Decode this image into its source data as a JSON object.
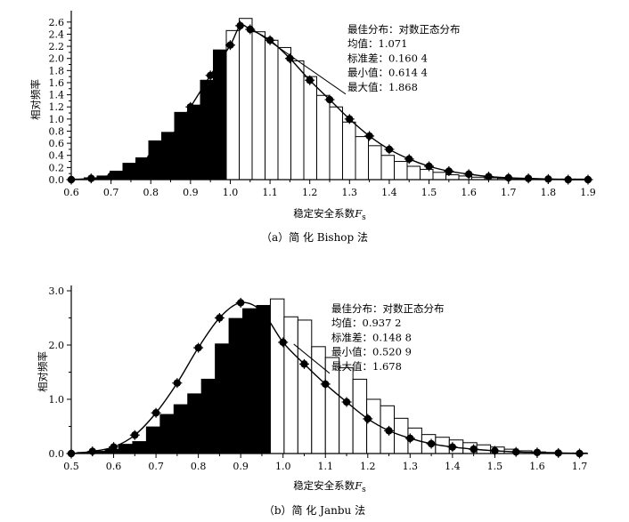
{
  "chart_data": [
    {
      "type": "bar",
      "panel": "a",
      "caption": "（a）简 化 Bishop 法",
      "xlabel_main": "稳定安全系数",
      "xlabel_var": "F",
      "xlabel_sub": "s",
      "ylabel": "相对频率",
      "xlim": [
        0.6,
        1.9
      ],
      "ylim": [
        0,
        2.7
      ],
      "xticks": [
        0.6,
        0.7,
        0.8,
        0.9,
        1.0,
        1.1,
        1.2,
        1.3,
        1.4,
        1.5,
        1.6,
        1.7,
        1.8,
        1.9
      ],
      "xtick_labels": [
        "0.6",
        "0.7",
        "0.8",
        "0.9",
        "1.0",
        "1.1",
        "1.2",
        "1.3",
        "1.4",
        "1.5",
        "1.6",
        "1.7",
        "1.8",
        "1.9"
      ],
      "yticks": [
        0.0,
        0.2,
        0.4,
        0.6,
        0.8,
        1.0,
        1.2,
        1.4,
        1.6,
        1.8,
        2.0,
        2.2,
        2.4,
        2.6
      ],
      "ytick_labels": [
        "0.0",
        "0.2",
        "0.4",
        "0.6",
        "0.8",
        "1.0",
        "1.2",
        "1.4",
        "1.6",
        "1.8",
        "2.0",
        "2.2",
        "2.4",
        "2.6"
      ],
      "bin_start": 0.6,
      "bin_width": 0.0325,
      "bar_values": [
        0.01,
        0.03,
        0.06,
        0.14,
        0.27,
        0.36,
        0.64,
        0.78,
        1.11,
        1.23,
        1.64,
        2.14,
        2.46,
        2.66,
        2.44,
        2.3,
        2.18,
        1.96,
        1.7,
        1.39,
        1.2,
        0.95,
        0.71,
        0.56,
        0.4,
        0.3,
        0.22,
        0.17,
        0.12,
        0.08,
        0.06,
        0.04,
        0.03,
        0.02,
        0.01,
        0.01,
        0.01,
        0.01,
        0.01,
        0.01
      ],
      "fill_below": 1.0,
      "curve_x": [
        0.6,
        0.65,
        0.7,
        0.75,
        0.8,
        0.85,
        0.9,
        0.95,
        1.0,
        1.025,
        1.05,
        1.1,
        1.15,
        1.2,
        1.25,
        1.3,
        1.35,
        1.4,
        1.45,
        1.5,
        1.55,
        1.6,
        1.65,
        1.7,
        1.75,
        1.8,
        1.85,
        1.9
      ],
      "curve_y": [
        0.0,
        0.02,
        0.06,
        0.16,
        0.36,
        0.7,
        1.2,
        1.72,
        2.22,
        2.54,
        2.48,
        2.3,
        2.0,
        1.64,
        1.32,
        1.0,
        0.72,
        0.5,
        0.34,
        0.22,
        0.14,
        0.09,
        0.05,
        0.03,
        0.02,
        0.01,
        0.0,
        0.0
      ],
      "annotation": [
        "最佳分布：对数正态分布",
        "均值：1.071",
        "标准差：0.160 4",
        "最小值：0.614 4",
        "最大值：1.868"
      ],
      "annotation_points_at": [
        1.02,
        2.55
      ]
    },
    {
      "type": "bar",
      "panel": "b",
      "caption": "（b）简 化 Janbu 法",
      "xlabel_main": "稳定安全系数",
      "xlabel_var": "F",
      "xlabel_sub": "s",
      "ylabel": "相对频率",
      "xlim": [
        0.5,
        1.72
      ],
      "ylim": [
        0,
        3.0
      ],
      "xticks": [
        0.5,
        0.6,
        0.7,
        0.8,
        0.9,
        1.0,
        1.1,
        1.2,
        1.3,
        1.4,
        1.5,
        1.6,
        1.7
      ],
      "xtick_labels": [
        "0.5",
        "0.6",
        "0.7",
        "0.8",
        "0.9",
        "1.0",
        "1.1",
        "1.2",
        "1.3",
        "1.4",
        "1.5",
        "1.6",
        "1.7"
      ],
      "yticks": [
        0.0,
        1.0,
        2.0,
        3.0
      ],
      "ytick_labels": [
        "0.0",
        "1.0",
        "2.0",
        "3.0"
      ],
      "bin_start": 0.515,
      "bin_width": 0.0325,
      "bar_values": [
        0.02,
        0.04,
        0.08,
        0.17,
        0.22,
        0.49,
        0.72,
        0.9,
        1.1,
        1.37,
        2.02,
        2.49,
        2.67,
        2.73,
        2.85,
        2.52,
        2.46,
        1.97,
        1.77,
        1.58,
        1.37,
        1.0,
        0.88,
        0.65,
        0.47,
        0.35,
        0.3,
        0.25,
        0.2,
        0.16,
        0.12,
        0.08,
        0.05,
        0.03,
        0.02,
        0.01,
        0.01
      ],
      "fill_below": 1.0,
      "curve_x": [
        0.5,
        0.55,
        0.6,
        0.65,
        0.7,
        0.75,
        0.8,
        0.85,
        0.9,
        0.95,
        1.0,
        1.05,
        1.1,
        1.15,
        1.2,
        1.25,
        1.3,
        1.35,
        1.4,
        1.45,
        1.5,
        1.55,
        1.6,
        1.65,
        1.7
      ],
      "curve_y": [
        0.0,
        0.04,
        0.12,
        0.34,
        0.75,
        1.3,
        1.95,
        2.5,
        2.78,
        2.62,
        2.05,
        1.65,
        1.28,
        0.95,
        0.64,
        0.42,
        0.28,
        0.18,
        0.12,
        0.08,
        0.05,
        0.03,
        0.02,
        0.01,
        0.0
      ],
      "annotation": [
        "最佳分布：对数正态分布",
        "均值：0.937 2",
        "标准差：0.148 8",
        "最小值：0.520 9",
        "最大值：1.678"
      ],
      "annotation_points_at": [
        1.0,
        2.05
      ]
    }
  ]
}
